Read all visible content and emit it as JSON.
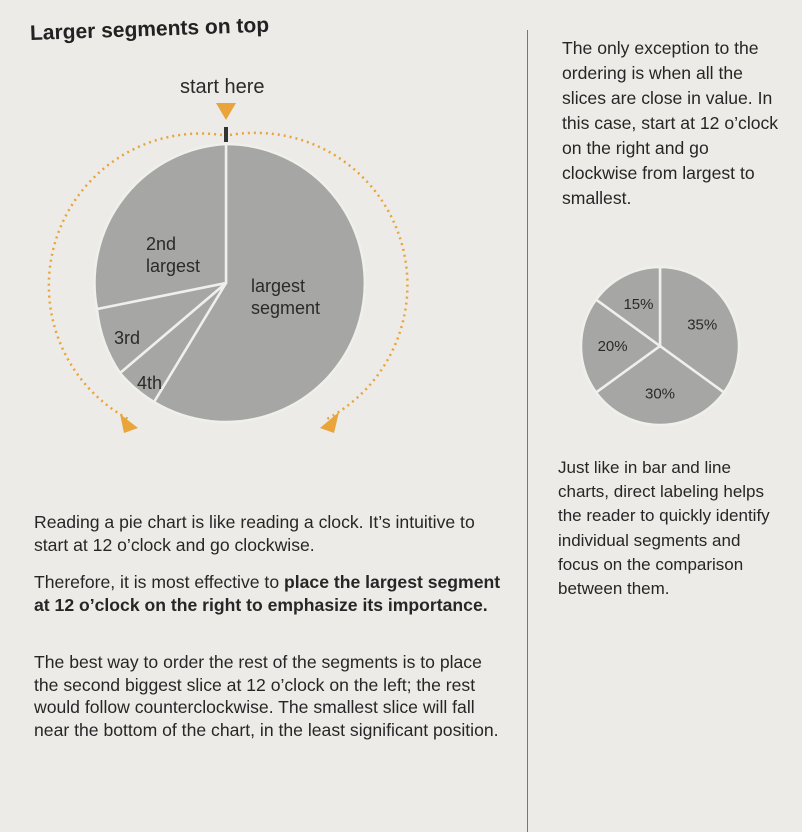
{
  "left": {
    "heading": "Larger segments on top",
    "start_label": "start here",
    "pie_labels": {
      "second": [
        "2nd",
        "largest"
      ],
      "largest": [
        "largest",
        "segment"
      ],
      "third": "3rd",
      "fourth": "4th"
    },
    "paragraph1": "Reading a pie chart is like reading a clock. It’s intuitive to start at 12 o’clock and go clockwise.",
    "paragraph2_plain": "Therefore, it is most effective to ",
    "paragraph2_bold": "place the largest segment at 12 o’clock on the right to emphasize its importance.",
    "paragraph3": "The best way to order the rest of the segments is to place the second biggest slice at 12 o’clock on the left; the rest would follow counterclockwise. The smallest slice will fall near the bottom of the chart, in the least significant position."
  },
  "right": {
    "top_text": "The only exception to the ordering is when all the slices are close in value. In this case, start at 12 o’clock on the right and go clockwise from largest to smallest.",
    "bottom_text": "Just like in bar and line charts, direct labeling helps the reader to quickly identify individual segments and focus on the comparison between them.",
    "small_pie": [
      {
        "label": "35%",
        "value": 35
      },
      {
        "label": "30%",
        "value": 30
      },
      {
        "label": "20%",
        "value": 20
      },
      {
        "label": "15%",
        "value": 15
      }
    ]
  },
  "colors": {
    "pie_fill": "#a6a6a4",
    "pie_stroke": "#efefeb",
    "accent": "#e9a43a",
    "text": "#262626"
  }
}
